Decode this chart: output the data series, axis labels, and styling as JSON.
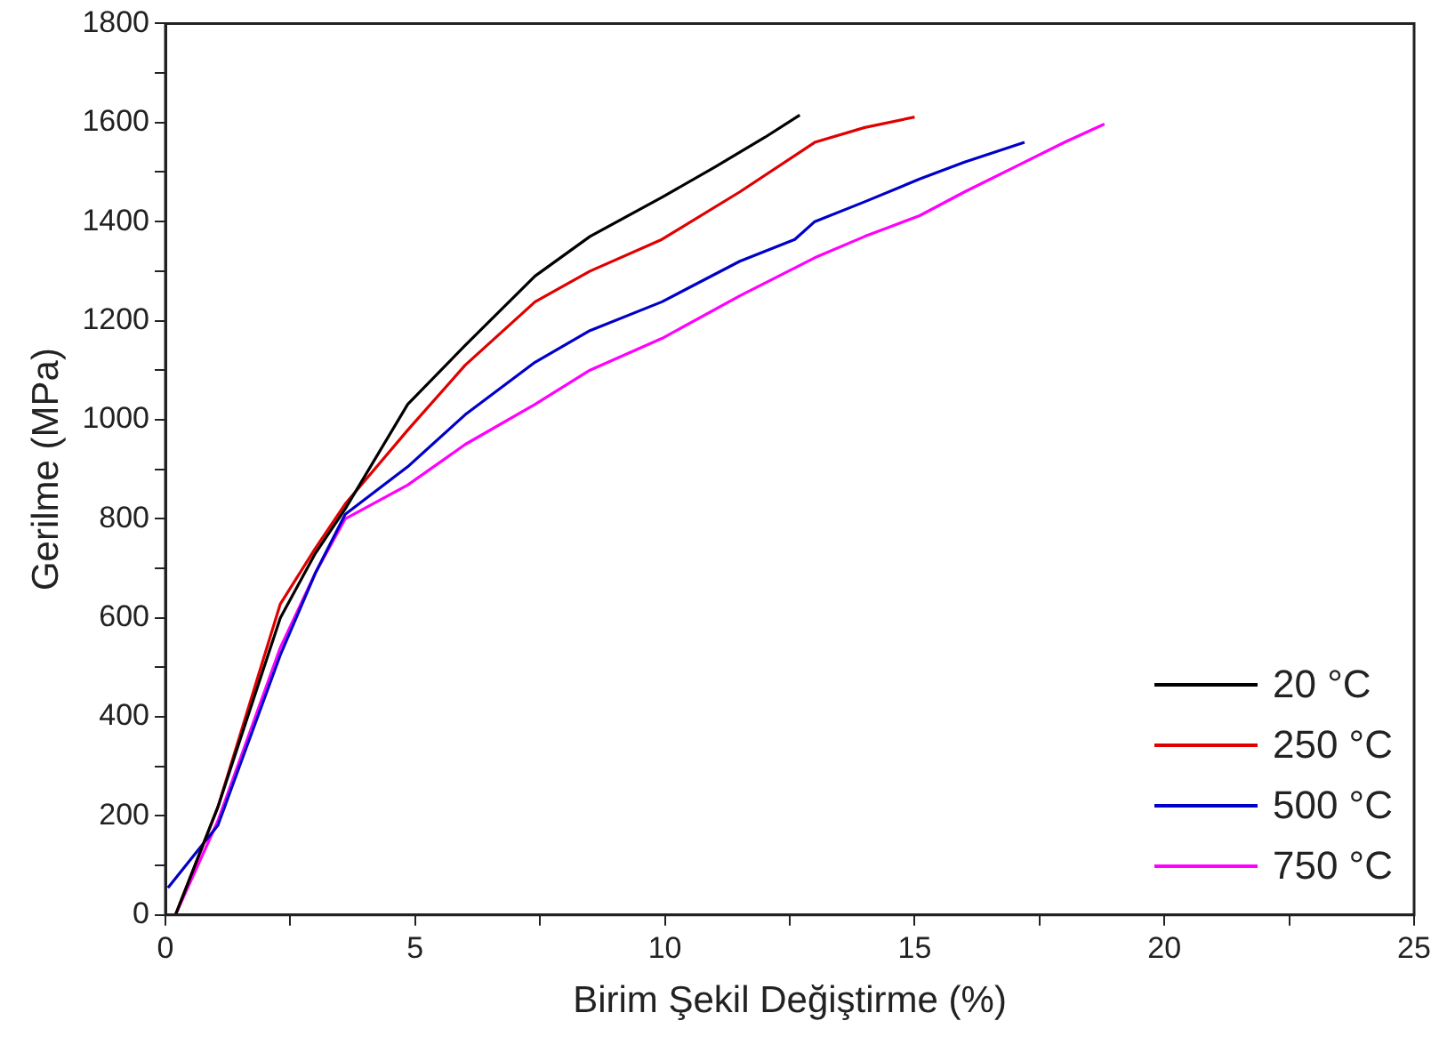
{
  "chart_data": {
    "type": "line",
    "xlabel": "Birim Şekil Değiştirme (%)",
    "ylabel": "Gerilme (MPa)",
    "xlim": [
      0,
      25
    ],
    "ylim": [
      0,
      1800
    ],
    "xticks": [
      0,
      {
        "value": 2.5,
        "label": null
      },
      5,
      {
        "value": 7.5,
        "label": null
      },
      10,
      {
        "value": 12.5,
        "label": null
      },
      15,
      {
        "value": 17.5,
        "label": null
      },
      20,
      {
        "value": 22.5,
        "label": null
      },
      25
    ],
    "yticks": [
      0,
      {
        "value": 100,
        "label": null
      },
      200,
      {
        "value": 300,
        "label": null
      },
      400,
      {
        "value": 500,
        "label": null
      },
      600,
      {
        "value": 700,
        "label": null
      },
      800,
      {
        "value": 900,
        "label": null
      },
      1000,
      {
        "value": 1100,
        "label": null
      },
      1200,
      {
        "value": 1300,
        "label": null
      },
      1400,
      {
        "value": 1500,
        "label": null
      },
      1600,
      {
        "value": 1700,
        "label": null
      },
      1800
    ],
    "grid": false,
    "legend": "bottom right",
    "marker": "none",
    "line_style": "solid",
    "series": [
      {
        "name": "20 °C",
        "color": "#000000",
        "x": [
          0.2,
          1.05,
          2.3,
          3.0,
          3.6,
          4.85,
          6,
          7.4,
          8.5,
          9.94,
          11,
          12,
          12.7
        ],
        "values": [
          0,
          218,
          600,
          730,
          820,
          1031,
          1150,
          1290,
          1370,
          1449,
          1510,
          1570,
          1615
        ]
      },
      {
        "name": "250 °C",
        "color": "#e00000",
        "x": [
          0.2,
          1.05,
          2.3,
          3.0,
          3.6,
          4.85,
          6,
          7.4,
          8.5,
          9.94,
          11.5,
          13.0,
          14,
          15.0
        ],
        "values": [
          0,
          218,
          628,
          740,
          830,
          979,
          1110,
          1238,
          1300,
          1364,
          1460,
          1560,
          1590,
          1611
        ]
      },
      {
        "name": "500 °C",
        "color": "#0000c8",
        "x": [
          0.05,
          1.05,
          2.3,
          3.0,
          3.6,
          4.85,
          6,
          7.4,
          8.5,
          9.94,
          11.5,
          12.6,
          13.0,
          14,
          15.1,
          16,
          17.2
        ],
        "values": [
          55,
          181,
          525,
          690,
          809,
          905,
          1010,
          1116,
          1180,
          1238,
          1320,
          1364,
          1400,
          1440,
          1486,
          1520,
          1560
        ]
      },
      {
        "name": "750 °C",
        "color": "#ff00ff",
        "x": [
          0.2,
          1.05,
          2.3,
          3.0,
          3.6,
          4.85,
          6,
          7.4,
          8.5,
          9.94,
          11.5,
          13.0,
          14,
          15.1,
          16,
          17.1,
          18,
          18.8
        ],
        "values": [
          0,
          190,
          540,
          690,
          800,
          868,
          950,
          1031,
          1100,
          1164,
          1250,
          1327,
          1370,
          1412,
          1460,
          1515,
          1560,
          1597
        ]
      }
    ]
  }
}
